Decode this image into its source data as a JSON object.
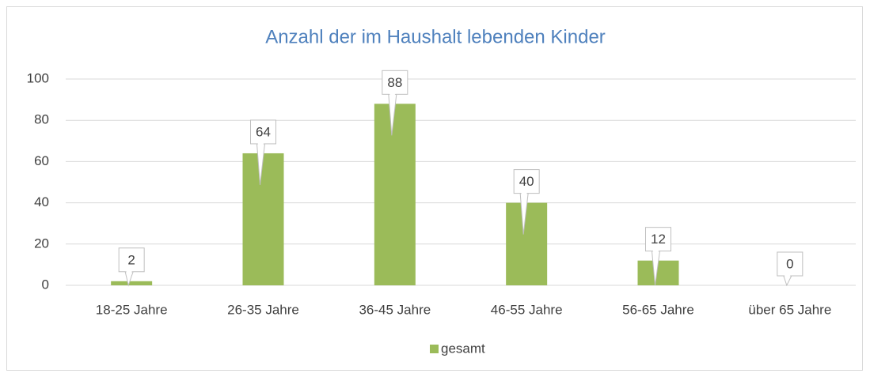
{
  "chart_data": {
    "type": "bar",
    "title": "Anzahl der im Haushalt lebenden Kinder",
    "categories": [
      "18-25 Jahre",
      "26-35 Jahre",
      "36-45 Jahre",
      "46-55 Jahre",
      "56-65 Jahre",
      "über 65 Jahre"
    ],
    "series": [
      {
        "name": "gesamt",
        "color": "#9bbb59",
        "values": [
          2,
          64,
          88,
          40,
          12,
          0
        ]
      }
    ],
    "ylim": [
      0,
      100
    ],
    "yticks": [
      0,
      20,
      40,
      60,
      80,
      100
    ],
    "grid": true,
    "legend": "bottom"
  }
}
